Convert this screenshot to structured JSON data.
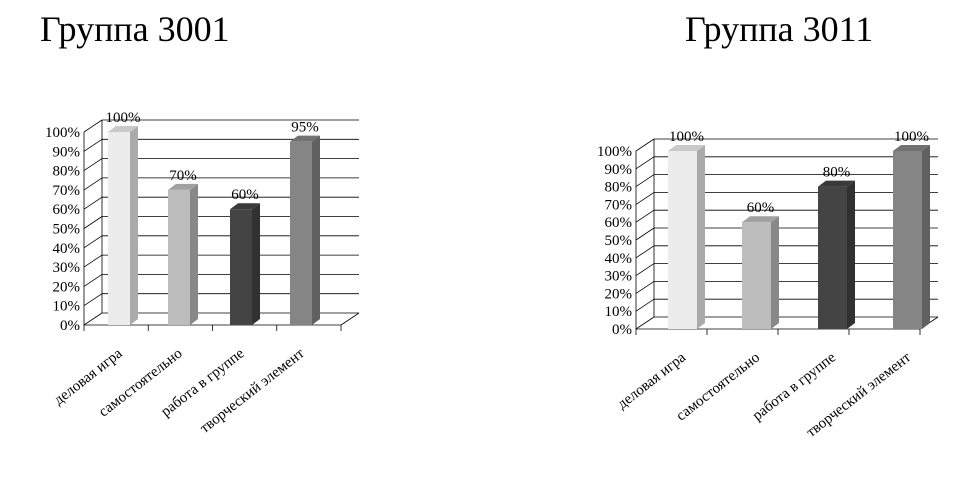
{
  "chart_data": [
    {
      "type": "bar",
      "title": "Группа 3001",
      "categories": [
        "деловая игра",
        "самостоятельно",
        "работа в группе",
        "творческий элемент"
      ],
      "values": [
        100,
        70,
        60,
        95
      ],
      "value_labels": [
        "100%",
        "70%",
        "60%",
        "95%"
      ],
      "y_ticks": [
        "0%",
        "10%",
        "20%",
        "30%",
        "40%",
        "50%",
        "60%",
        "70%",
        "80%",
        "90%",
        "100%"
      ],
      "ylim": [
        0,
        100
      ],
      "grid": true,
      "legend": "none",
      "bar_colors": [
        "#ececec",
        "#bdbdbd",
        "#444444",
        "#858585"
      ]
    },
    {
      "type": "bar",
      "title": "Группа 3011",
      "categories": [
        "деловая игра",
        "самостоятельно",
        "работа в группе",
        "творческий элемент"
      ],
      "values": [
        100,
        60,
        80,
        100
      ],
      "value_labels": [
        "100%",
        "60%",
        "80%",
        "100%"
      ],
      "y_ticks": [
        "0%",
        "10%",
        "20%",
        "30%",
        "40%",
        "50%",
        "60%",
        "70%",
        "80%",
        "90%",
        "100%"
      ],
      "ylim": [
        0,
        100
      ],
      "grid": true,
      "legend": "none",
      "bar_colors": [
        "#ececec",
        "#bdbdbd",
        "#444444",
        "#858585"
      ]
    }
  ]
}
